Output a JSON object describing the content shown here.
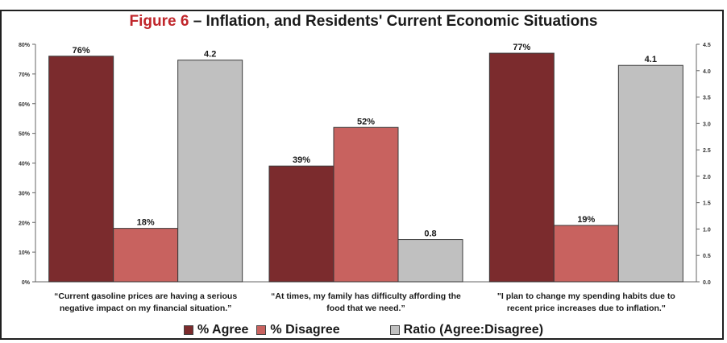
{
  "chart_data": {
    "type": "bar",
    "title_figure": "Figure 6",
    "title_rest": " – Inflation, and Residents' Current Economic Situations",
    "categories": [
      [
        "“Current gasoline prices are having a serious",
        "negative impact on my financial situation.”"
      ],
      [
        "“At times, my family has difficulty affording the",
        "food that we need.”"
      ],
      [
        "\"I plan to change my spending habits due to",
        "recent price increases due to inflation.\""
      ]
    ],
    "series": [
      {
        "name": "% Agree",
        "axis": "left",
        "color": "#7b2b2d",
        "values": [
          76,
          39,
          77
        ],
        "labels": [
          "76%",
          "39%",
          "77%"
        ]
      },
      {
        "name": "% Disagree",
        "axis": "left",
        "color": "#c8625f",
        "values": [
          18,
          52,
          19
        ],
        "labels": [
          "18%",
          "52%",
          "19%"
        ]
      },
      {
        "name": "Ratio (Agree:Disagree)",
        "axis": "right",
        "color": "#c0c0c0",
        "values": [
          4.2,
          0.8,
          4.1
        ],
        "labels": [
          "4.2",
          "0.8",
          "4.1"
        ]
      }
    ],
    "y_left": {
      "min": 0,
      "max": 80,
      "ticks": [
        "0%",
        "10%",
        "20%",
        "30%",
        "40%",
        "50%",
        "60%",
        "70%",
        "80%"
      ]
    },
    "y_right": {
      "min": 0,
      "max": 4.5,
      "ticks": [
        "0.0",
        "0.5",
        "1.0",
        "1.5",
        "2.0",
        "2.5",
        "3.0",
        "3.5",
        "4.0",
        "4.5"
      ]
    },
    "legend_position": "bottom"
  }
}
